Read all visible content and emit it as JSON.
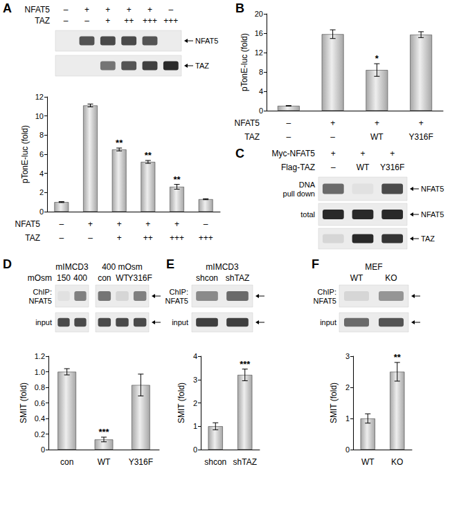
{
  "chart_data": [
    {
      "type": "bar",
      "title": "A",
      "ylabel": "pTonE-luc (fold)",
      "x_table": [
        {
          "label": "NFAT5",
          "values": [
            "–",
            "+",
            "+",
            "+",
            "+",
            "–"
          ]
        },
        {
          "label": "TAZ",
          "values": [
            "–",
            "–",
            "+",
            "++",
            "+++",
            "+++"
          ]
        }
      ],
      "values": [
        1,
        11.1,
        6.5,
        5.2,
        2.6,
        1.3
      ],
      "errors": [
        0.05,
        0.15,
        0.15,
        0.15,
        0.25,
        0.05
      ],
      "significance": [
        null,
        null,
        "**",
        "**",
        "**",
        null
      ],
      "color": "#a6a6a6",
      "ylim": [
        0,
        12
      ],
      "yticks": [
        0,
        2,
        4,
        6,
        8,
        10,
        12
      ],
      "grid": false
    },
    {
      "type": "bar",
      "title": "B",
      "ylabel": "pTonE-luc (fold)",
      "x_table": [
        {
          "label": "NFAT5",
          "values": [
            "–",
            "+",
            "+",
            "+"
          ]
        },
        {
          "label": "TAZ",
          "values": [
            "–",
            "–",
            "WT",
            "Y316F"
          ]
        }
      ],
      "values": [
        1,
        15.8,
        8.4,
        15.7
      ],
      "errors": [
        0.05,
        0.9,
        1.3,
        0.6
      ],
      "significance": [
        null,
        null,
        "*",
        null
      ],
      "color": "#a6a6a6",
      "ylim": [
        0,
        20
      ],
      "yticks": [
        0,
        4,
        8,
        12,
        16,
        20
      ],
      "grid": false
    },
    {
      "type": "bar",
      "title": "D",
      "ylabel": "SMIT (fold)",
      "categories": [
        "con",
        "WT",
        "Y316F"
      ],
      "values": [
        1.0,
        0.13,
        0.83
      ],
      "errors": [
        0.04,
        0.03,
        0.14
      ],
      "significance": [
        null,
        "***",
        null
      ],
      "color": "#a6a6a6",
      "ylim": [
        0,
        1.2
      ],
      "yticks": [
        0,
        0.2,
        0.4,
        0.6,
        0.8,
        {
          "value": 1,
          "label": "1.0"
        },
        1.2
      ],
      "grid": false
    },
    {
      "type": "bar",
      "title": "E",
      "ylabel": "SMIT (fold)",
      "categories": [
        "shcon",
        "shTAZ"
      ],
      "values": [
        1.0,
        3.2
      ],
      "errors": [
        0.15,
        0.25
      ],
      "significance": [
        null,
        "***"
      ],
      "color": "#a6a6a6",
      "ylim": [
        0,
        4
      ],
      "yticks": [
        0,
        1,
        2,
        3,
        4
      ],
      "grid": false
    },
    {
      "type": "bar",
      "title": "F",
      "ylabel": "SMIT (fold)",
      "categories": [
        "WT",
        "KO"
      ],
      "values": [
        1.0,
        2.5
      ],
      "errors": [
        0.15,
        0.3
      ],
      "significance": [
        null,
        "**"
      ],
      "color": "#a6a6a6",
      "ylim": [
        0,
        3
      ],
      "yticks": [
        0,
        1,
        2,
        3
      ],
      "grid": false
    }
  ],
  "blots": [
    {
      "columns": [
        {
          "label": "NFAT5",
          "values": [
            "–",
            "+",
            "+",
            "+",
            "+",
            "–"
          ]
        },
        {
          "label": "TAZ",
          "values": [
            "–",
            "–",
            "+",
            "++",
            "+++",
            "+++"
          ]
        }
      ],
      "rows": [
        {
          "right": "NFAT5",
          "bands": [
            0,
            0.7,
            0.75,
            0.75,
            0.7,
            0
          ]
        },
        {
          "right": "TAZ",
          "bands": [
            0,
            0,
            0.55,
            0.7,
            0.8,
            0.9
          ]
        }
      ]
    },
    {
      "title": "C",
      "columns": [
        {
          "label": "Myc-NFAT5",
          "values": [
            "+",
            "+",
            "+"
          ]
        },
        {
          "label": "Flag-TAZ",
          "values": [
            "–",
            "WT",
            "Y316F"
          ]
        }
      ],
      "rows": [
        {
          "left": "DNA\npull down",
          "right": "NFAT5",
          "bands": [
            0.6,
            0.05,
            0.75
          ]
        },
        {
          "left": "total",
          "right": "NFAT5",
          "bands": [
            0.9,
            0.9,
            0.9
          ]
        },
        {
          "right": "TAZ",
          "bands": [
            0.1,
            0.9,
            0.85
          ]
        }
      ]
    },
    {
      "groups": [
        {
          "label": "mIMCD3",
          "lanes": [
            "150",
            "400"
          ]
        },
        {
          "label": "400 mOsm",
          "lanes": [
            "con",
            "WT",
            "Y316F"
          ]
        }
      ],
      "lane_label": "mOsm",
      "rows": [
        {
          "left": "ChIP:\nNFAT5",
          "bands": [
            0.05,
            0.5,
            0.55,
            0.1,
            0.5
          ]
        },
        {
          "left": "input",
          "bands": [
            0.75,
            0.75,
            0.75,
            0.75,
            0.75
          ]
        }
      ]
    },
    {
      "groups": [
        {
          "label": "mIMCD3",
          "lanes": [
            "shcon",
            "shTAZ"
          ]
        }
      ],
      "rows": [
        {
          "left": "ChIP:\nNFAT5",
          "bands": [
            0.45,
            0.6
          ]
        },
        {
          "left": "input",
          "bands": [
            0.8,
            0.8
          ]
        }
      ]
    },
    {
      "groups": [
        {
          "label": "MEF",
          "lanes": [
            "WT",
            "KO"
          ]
        }
      ],
      "rows": [
        {
          "left": "ChIP:\nNFAT5",
          "bands": [
            0.1,
            0.4
          ]
        },
        {
          "left": "input",
          "bands": [
            0.6,
            0.7
          ]
        }
      ]
    }
  ]
}
